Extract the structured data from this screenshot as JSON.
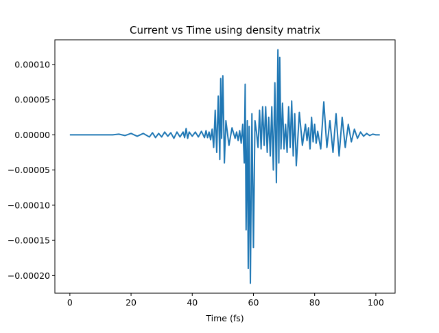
{
  "chart_data": {
    "type": "line",
    "title": "Current vs Time using density matrix",
    "xlabel": "Time (fs)",
    "ylabel": "",
    "xlim": [
      -4.9,
      106.3
    ],
    "ylim": [
      -0.000225,
      0.000135
    ],
    "x_ticks": [
      0,
      20,
      40,
      60,
      80,
      100
    ],
    "x_tick_labels": [
      "0",
      "20",
      "40",
      "60",
      "80",
      "100"
    ],
    "y_ticks": [
      0.0001,
      5e-05,
      0,
      -5e-05,
      -0.0001,
      -0.00015,
      -0.0002
    ],
    "y_tick_labels": [
      "0.00010",
      "0.00005",
      "0.00000",
      "−0.00005",
      "−0.00010",
      "−0.00015",
      "−0.00020"
    ],
    "grid": false,
    "legend": "none",
    "series": [
      {
        "color": "#1f77b4",
        "x": [
          0,
          8,
          14,
          16,
          18,
          20,
          22,
          24,
          26,
          27,
          28,
          29,
          30,
          31,
          32,
          33,
          34,
          35,
          36,
          37,
          37.5,
          38,
          38.5,
          39,
          40,
          41,
          42,
          43,
          44,
          44.5,
          45,
          45.5,
          46,
          46.5,
          47,
          47.5,
          48,
          48.5,
          49,
          49.3,
          49.6,
          50,
          50.5,
          51,
          52,
          53,
          54,
          54.5,
          55,
          55.5,
          56,
          56.5,
          57,
          57.3,
          57.6,
          58,
          58.3,
          58.6,
          59,
          59.5,
          60,
          60.5,
          61,
          61.5,
          62,
          62.5,
          63,
          63.5,
          64,
          64.5,
          65,
          65.5,
          66,
          66.5,
          67,
          67.5,
          68,
          68.3,
          68.6,
          69,
          69.5,
          70,
          70.5,
          71,
          71.5,
          72,
          72.5,
          73,
          73.5,
          74,
          75,
          76,
          77,
          77.5,
          78,
          78.5,
          79,
          79.5,
          80,
          80.5,
          81,
          82,
          83,
          84,
          85,
          86,
          87,
          88,
          89,
          90,
          91,
          92,
          93,
          94,
          95,
          96,
          97,
          98,
          99,
          100,
          101.3
        ],
        "values": [
          0,
          0,
          0,
          1e-06,
          -1e-06,
          2e-06,
          -2e-06,
          2e-06,
          -3e-06,
          3e-06,
          -4e-06,
          2e-06,
          -3e-06,
          4e-06,
          -2e-06,
          3e-06,
          -5e-06,
          4e-06,
          -3e-06,
          4e-06,
          -4e-06,
          9e-06,
          -5e-06,
          4e-06,
          -2e-06,
          4e-06,
          -3e-06,
          5e-06,
          -4e-06,
          6e-06,
          -4e-06,
          4e-06,
          -7e-06,
          8e-06,
          -1.8e-05,
          3.5e-05,
          -2.5e-05,
          5.5e-05,
          -3.5e-05,
          8e-05,
          -5e-06,
          8.4e-05,
          -4e-05,
          2e-05,
          -1.5e-05,
          1e-05,
          -5e-06,
          4e-06,
          -8e-06,
          6e-06,
          -1.2e-05,
          1.5e-05,
          -4e-05,
          7.2e-05,
          -0.000135,
          2e-05,
          -0.00019,
          1.2e-05,
          -0.000211,
          3e-05,
          -0.00016,
          2e-05,
          4e-06,
          -1.8e-05,
          3.5e-05,
          -2e-05,
          4e-05,
          -1.5e-05,
          4e-05,
          -2.5e-05,
          2.5e-05,
          -3e-05,
          4e-05,
          -5e-05,
          7.4e-05,
          -6.8e-05,
          0.000121,
          -4e-05,
          0.00011,
          -2e-05,
          4.5e-05,
          -2e-05,
          1.5e-05,
          -2.5e-05,
          4e-05,
          -1.8e-05,
          4.8e-05,
          -3e-05,
          3e-05,
          -4.4e-05,
          3.2e-05,
          -1.5e-05,
          1.5e-05,
          -8e-06,
          1e-05,
          -2e-05,
          2.5e-05,
          -1e-05,
          1.5e-05,
          -1.2e-05,
          5e-06,
          -2e-05,
          4.7e-05,
          -1.8e-05,
          2e-05,
          -2.5e-05,
          3e-05,
          -3e-05,
          2.5e-05,
          -1.8e-05,
          1.5e-05,
          -1e-05,
          8e-06,
          -5e-06,
          4e-06,
          -2e-06,
          2e-06,
          -1e-06,
          1e-06,
          0,
          0
        ]
      }
    ]
  }
}
